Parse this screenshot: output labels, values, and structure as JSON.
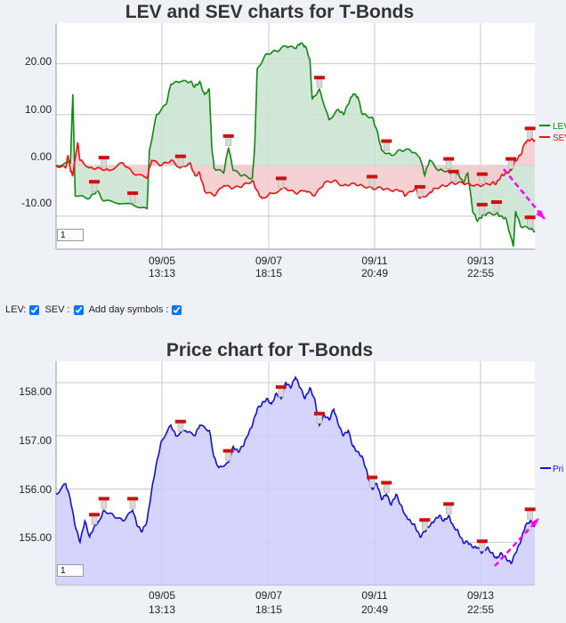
{
  "chart_data": [
    {
      "type": "line",
      "title": "LEV and SEV charts for T-Bonds",
      "xlabel": "",
      "ylabel": "",
      "ylim": [
        -16.5,
        28
      ],
      "yticks": [
        "20.00",
        "10.00",
        "0.00",
        "-10.00"
      ],
      "ytick_values": [
        20,
        10,
        0,
        -10
      ],
      "xticks": [
        {
          "date": "09/05",
          "time": "13:13"
        },
        {
          "date": "09/07",
          "time": "18:15"
        },
        {
          "date": "09/11",
          "time": "20:49"
        },
        {
          "date": "09/13",
          "time": "22:55"
        }
      ],
      "series": [
        {
          "name": "LEV",
          "color": "#118811",
          "fill": "#c8e2cf",
          "values": [
            [
              0,
              0
            ],
            [
              0.03,
              0.5
            ],
            [
              0.035,
              14
            ],
            [
              0.04,
              -6
            ],
            [
              0.07,
              -6.5
            ],
            [
              0.085,
              -5
            ],
            [
              0.1,
              -7
            ],
            [
              0.15,
              -7.5
            ],
            [
              0.19,
              -8.5
            ],
            [
              0.195,
              3
            ],
            [
              0.21,
              10
            ],
            [
              0.23,
              12
            ],
            [
              0.24,
              16
            ],
            [
              0.26,
              16.5
            ],
            [
              0.28,
              16.5
            ],
            [
              0.29,
              15.5
            ],
            [
              0.3,
              16.5
            ],
            [
              0.31,
              14
            ],
            [
              0.32,
              15
            ],
            [
              0.325,
              4
            ],
            [
              0.33,
              -0.5
            ],
            [
              0.35,
              -1.5
            ],
            [
              0.36,
              3.5
            ],
            [
              0.37,
              -1
            ],
            [
              0.39,
              -2
            ],
            [
              0.41,
              -2.5
            ],
            [
              0.415,
              4
            ],
            [
              0.42,
              19
            ],
            [
              0.44,
              22
            ],
            [
              0.46,
              22.5
            ],
            [
              0.48,
              23.5
            ],
            [
              0.5,
              23
            ],
            [
              0.51,
              24
            ],
            [
              0.52,
              23.5
            ],
            [
              0.53,
              21
            ],
            [
              0.535,
              13
            ],
            [
              0.55,
              15
            ],
            [
              0.57,
              9
            ],
            [
              0.59,
              11
            ],
            [
              0.6,
              10
            ],
            [
              0.61,
              12
            ],
            [
              0.62,
              14
            ],
            [
              0.63,
              13.5
            ],
            [
              0.64,
              10
            ],
            [
              0.66,
              9.5
            ],
            [
              0.67,
              7
            ],
            [
              0.68,
              3
            ],
            [
              0.7,
              2
            ],
            [
              0.72,
              3
            ],
            [
              0.74,
              3
            ],
            [
              0.76,
              1.5
            ],
            [
              0.77,
              -2
            ],
            [
              0.78,
              1
            ],
            [
              0.8,
              -1
            ],
            [
              0.82,
              -1
            ],
            [
              0.83,
              -2
            ],
            [
              0.84,
              -1.5
            ],
            [
              0.85,
              -3.5
            ],
            [
              0.86,
              -1.5
            ],
            [
              0.87,
              -9
            ],
            [
              0.88,
              -11
            ],
            [
              0.89,
              -10
            ],
            [
              0.9,
              -9.5
            ],
            [
              0.92,
              -9.5
            ],
            [
              0.93,
              -10
            ],
            [
              0.94,
              -10.5
            ],
            [
              0.955,
              -16
            ],
            [
              0.96,
              -9
            ],
            [
              0.97,
              -12
            ],
            [
              0.99,
              -12.5
            ],
            [
              1,
              -13
            ]
          ]
        },
        {
          "name": "SEV",
          "color": "#ee1111",
          "fill": "#f3c9cc",
          "values": [
            [
              0,
              0
            ],
            [
              0.02,
              -0.5
            ],
            [
              0.025,
              2
            ],
            [
              0.03,
              -1
            ],
            [
              0.035,
              -2
            ],
            [
              0.045,
              4.5
            ],
            [
              0.05,
              1
            ],
            [
              0.07,
              -0.5
            ],
            [
              0.09,
              -0.5
            ],
            [
              0.11,
              -1
            ],
            [
              0.14,
              0.5
            ],
            [
              0.16,
              -1.5
            ],
            [
              0.19,
              -2.5
            ],
            [
              0.2,
              1
            ],
            [
              0.22,
              0
            ],
            [
              0.24,
              1
            ],
            [
              0.26,
              -0.5
            ],
            [
              0.28,
              0.5
            ],
            [
              0.29,
              -2
            ],
            [
              0.3,
              -1.5
            ],
            [
              0.31,
              -5
            ],
            [
              0.33,
              -6
            ],
            [
              0.35,
              -4
            ],
            [
              0.37,
              -4.5
            ],
            [
              0.39,
              -4
            ],
            [
              0.41,
              -3
            ],
            [
              0.42,
              -5
            ],
            [
              0.43,
              -6.5
            ],
            [
              0.45,
              -5.5
            ],
            [
              0.48,
              -4.5
            ],
            [
              0.5,
              -5.5
            ],
            [
              0.52,
              -5
            ],
            [
              0.54,
              -6
            ],
            [
              0.56,
              -3.5
            ],
            [
              0.58,
              -3
            ],
            [
              0.6,
              -4
            ],
            [
              0.62,
              -3.5
            ],
            [
              0.64,
              -4
            ],
            [
              0.66,
              -4.5
            ],
            [
              0.68,
              -4.5
            ],
            [
              0.7,
              -5
            ],
            [
              0.72,
              -5
            ],
            [
              0.73,
              -6
            ],
            [
              0.75,
              -4.5
            ],
            [
              0.76,
              -6.5
            ],
            [
              0.78,
              -5.5
            ],
            [
              0.79,
              -4.5
            ],
            [
              0.81,
              -4
            ],
            [
              0.83,
              -3.5
            ],
            [
              0.85,
              -3.5
            ],
            [
              0.87,
              -4
            ],
            [
              0.89,
              -4
            ],
            [
              0.91,
              -3.5
            ],
            [
              0.92,
              -3.5
            ],
            [
              0.93,
              -2
            ],
            [
              0.94,
              -1.5
            ],
            [
              0.95,
              -1
            ],
            [
              0.96,
              1
            ],
            [
              0.97,
              2
            ],
            [
              0.98,
              4.5
            ],
            [
              0.99,
              5
            ],
            [
              1,
              5
            ]
          ]
        }
      ],
      "markers_x": [
        0.08,
        0.1,
        0.16,
        0.26,
        0.36,
        0.47,
        0.55,
        0.66,
        0.69,
        0.76,
        0.82,
        0.83,
        0.89,
        0.89,
        0.92,
        0.95,
        0.99,
        0.99
      ],
      "legend_position": "right",
      "page_input": "1"
    },
    {
      "type": "area",
      "title": "Price chart for T-Bonds",
      "xlabel": "",
      "ylabel": "",
      "ylim": [
        154.2,
        158.4
      ],
      "yticks": [
        "158.00",
        "157.00",
        "156.00",
        "155.00"
      ],
      "ytick_values": [
        158,
        157,
        156,
        155
      ],
      "xticks": [
        {
          "date": "09/05",
          "time": "13:13"
        },
        {
          "date": "09/07",
          "time": "18:15"
        },
        {
          "date": "09/11",
          "time": "20:49"
        },
        {
          "date": "09/13",
          "time": "22:55"
        }
      ],
      "series": [
        {
          "name": "Price",
          "color": "#1111dd",
          "fill": "#cccdfb",
          "values": [
            [
              0,
              155.9
            ],
            [
              0.02,
              156.1
            ],
            [
              0.03,
              155.8
            ],
            [
              0.04,
              155.3
            ],
            [
              0.05,
              155.0
            ],
            [
              0.06,
              155.4
            ],
            [
              0.07,
              155.1
            ],
            [
              0.08,
              155.3
            ],
            [
              0.09,
              155.4
            ],
            [
              0.1,
              155.6
            ],
            [
              0.12,
              155.5
            ],
            [
              0.14,
              155.4
            ],
            [
              0.16,
              155.6
            ],
            [
              0.17,
              155.3
            ],
            [
              0.18,
              155.2
            ],
            [
              0.19,
              155.4
            ],
            [
              0.2,
              156.0
            ],
            [
              0.21,
              156.5
            ],
            [
              0.22,
              156.9
            ],
            [
              0.24,
              157.2
            ],
            [
              0.25,
              157.0
            ],
            [
              0.27,
              157.1
            ],
            [
              0.29,
              157.0
            ],
            [
              0.3,
              157.2
            ],
            [
              0.32,
              157.1
            ],
            [
              0.33,
              156.6
            ],
            [
              0.34,
              156.4
            ],
            [
              0.36,
              156.5
            ],
            [
              0.37,
              156.8
            ],
            [
              0.38,
              156.7
            ],
            [
              0.39,
              156.8
            ],
            [
              0.4,
              157.0
            ],
            [
              0.41,
              157.2
            ],
            [
              0.42,
              157.5
            ],
            [
              0.43,
              157.6
            ],
            [
              0.44,
              157.7
            ],
            [
              0.45,
              157.6
            ],
            [
              0.46,
              157.8
            ],
            [
              0.47,
              157.7
            ],
            [
              0.48,
              158.0
            ],
            [
              0.49,
              157.9
            ],
            [
              0.5,
              158.1
            ],
            [
              0.51,
              157.9
            ],
            [
              0.52,
              157.7
            ],
            [
              0.53,
              157.9
            ],
            [
              0.54,
              157.7
            ],
            [
              0.55,
              157.2
            ],
            [
              0.56,
              157.4
            ],
            [
              0.57,
              157.3
            ],
            [
              0.58,
              157.5
            ],
            [
              0.59,
              157.2
            ],
            [
              0.6,
              157.0
            ],
            [
              0.61,
              157.1
            ],
            [
              0.62,
              156.8
            ],
            [
              0.63,
              156.7
            ],
            [
              0.64,
              156.6
            ],
            [
              0.65,
              156.3
            ],
            [
              0.66,
              156.0
            ],
            [
              0.67,
              156.1
            ],
            [
              0.68,
              155.8
            ],
            [
              0.69,
              155.9
            ],
            [
              0.7,
              155.7
            ],
            [
              0.71,
              155.9
            ],
            [
              0.72,
              155.7
            ],
            [
              0.73,
              155.5
            ],
            [
              0.74,
              155.4
            ],
            [
              0.75,
              155.3
            ],
            [
              0.76,
              155.1
            ],
            [
              0.77,
              155.2
            ],
            [
              0.78,
              155.3
            ],
            [
              0.79,
              155.4
            ],
            [
              0.8,
              155.5
            ],
            [
              0.81,
              155.4
            ],
            [
              0.82,
              155.5
            ],
            [
              0.83,
              155.3
            ],
            [
              0.84,
              155.2
            ],
            [
              0.85,
              155.0
            ],
            [
              0.86,
              155.0
            ],
            [
              0.87,
              154.9
            ],
            [
              0.88,
              154.9
            ],
            [
              0.89,
              154.8
            ],
            [
              0.9,
              154.9
            ],
            [
              0.91,
              154.8
            ],
            [
              0.92,
              154.7
            ],
            [
              0.93,
              154.8
            ],
            [
              0.94,
              154.7
            ],
            [
              0.95,
              154.6
            ],
            [
              0.96,
              154.8
            ],
            [
              0.97,
              155.0
            ],
            [
              0.98,
              155.3
            ],
            [
              0.99,
              155.4
            ],
            [
              1,
              155.3
            ]
          ]
        }
      ],
      "markers_x": [
        0.08,
        0.1,
        0.16,
        0.26,
        0.36,
        0.47,
        0.55,
        0.66,
        0.69,
        0.77,
        0.82,
        0.89,
        0.99
      ],
      "legend_position": "right",
      "page_input": "1"
    }
  ],
  "legend": {
    "lev": "LEV",
    "sev": "SEV",
    "price": "Pri"
  },
  "controls": {
    "lev_label": "LEV:",
    "sev_label": "SEV :",
    "day_symbols_label": "Add day symbols :"
  }
}
